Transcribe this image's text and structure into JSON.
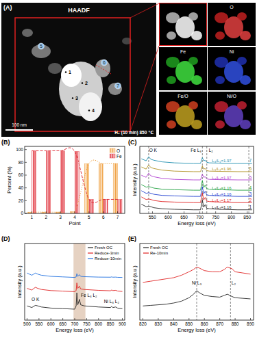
{
  "image_panel": {
    "panel": "(A)",
    "title": "HAADF",
    "scale_bar": "100 nm",
    "condition": "H₂ (10 min)  850 ℃",
    "points": [
      "1",
      "2",
      "3",
      "4",
      "5",
      "6",
      "7"
    ],
    "maps": [
      "O",
      "Fe",
      "Ni",
      "Fe/O",
      "Ni/O"
    ]
  },
  "chart_data": [
    {
      "panel": "(B)",
      "type": "bar",
      "x_label": "Point",
      "y_label": "Percent (%)",
      "categories": [
        "1",
        "2",
        "3",
        "4",
        "5",
        "6",
        "7"
      ],
      "ylim": [
        0,
        105
      ],
      "yticks": [
        0,
        20,
        40,
        60,
        80,
        100
      ],
      "legend": "upper right",
      "series": [
        {
          "name": "O",
          "color": "#f0a040",
          "line_style": "dotted",
          "values": [
            2,
            2,
            2,
            3,
            78,
            78,
            78
          ]
        },
        {
          "name": "Fe",
          "color": "#e0303a",
          "line_style": "dashed",
          "values": [
            98,
            98,
            98,
            97,
            22,
            22,
            22
          ]
        }
      ]
    },
    {
      "panel": "(C)",
      "type": "line",
      "x_label": "Energy loss (eV)",
      "y_label": "Intensity (a.u.)",
      "tick_labels": "x",
      "xlim": [
        510,
        870
      ],
      "xticks": [
        550,
        600,
        650,
        700,
        750,
        800,
        850
      ],
      "ylim": [
        0,
        6.5
      ],
      "vlines": [
        538,
        708,
        722,
        855
      ],
      "annotations": [
        {
          "text": "O K",
          "x": 552,
          "y": 5.95
        },
        {
          "text": "Fe L₃",
          "x": 688,
          "y": 5.95
        },
        {
          "text": "L₂",
          "x": 735,
          "y": 5.95
        }
      ],
      "x": [
        515,
        530,
        538,
        545,
        555,
        580,
        620,
        680,
        702,
        708,
        712,
        717,
        722,
        730,
        760,
        820,
        865
      ],
      "series": [
        {
          "name": "1",
          "color": "#222222",
          "annotation": "L₃/L₂=1.16",
          "values": [
            0.9,
            0.65,
            0.7,
            0.65,
            0.55,
            0.45,
            0.4,
            0.35,
            0.35,
            1.3,
            0.6,
            0.85,
            0.5,
            0.45,
            0.4,
            0.35,
            0.35
          ]
        },
        {
          "name": "2",
          "color": "#e02020",
          "annotation": "L₃/L₂=1.17",
          "values": [
            1.6,
            1.35,
            1.4,
            1.35,
            1.25,
            1.15,
            1.1,
            1.05,
            1.05,
            2.0,
            1.3,
            1.55,
            1.2,
            1.15,
            1.1,
            1.05,
            1.05
          ]
        },
        {
          "name": "3",
          "color": "#2040d0",
          "annotation": "L₃/L₂=1.16",
          "values": [
            2.2,
            1.95,
            2.0,
            1.95,
            1.85,
            1.75,
            1.7,
            1.65,
            1.65,
            2.6,
            1.9,
            2.15,
            1.8,
            1.75,
            1.7,
            1.65,
            1.65
          ]
        },
        {
          "name": "4",
          "color": "#20a040",
          "annotation": "L₃/L₂=1.16",
          "values": [
            2.8,
            2.55,
            2.6,
            2.55,
            2.45,
            2.35,
            2.3,
            2.25,
            2.25,
            3.2,
            2.5,
            2.75,
            2.4,
            2.35,
            2.3,
            2.25,
            2.25
          ]
        },
        {
          "name": "5",
          "color": "#b040d0",
          "annotation": "L₃/L₂=1.97",
          "values": [
            3.7,
            3.5,
            3.9,
            3.65,
            3.55,
            3.4,
            3.3,
            3.25,
            3.25,
            3.8,
            3.5,
            3.55,
            3.35,
            3.3,
            3.28,
            3.25,
            3.25
          ]
        },
        {
          "name": "6",
          "color": "#b09020",
          "annotation": "L₃/L₂=1.96",
          "values": [
            4.5,
            4.3,
            4.7,
            4.45,
            4.35,
            4.2,
            4.1,
            4.05,
            4.05,
            4.6,
            4.3,
            4.35,
            4.15,
            4.1,
            4.08,
            4.05,
            4.05
          ]
        },
        {
          "name": "7",
          "color": "#2090b0",
          "annotation": "L₃/L₂=1.97",
          "values": [
            5.3,
            5.1,
            5.5,
            5.25,
            5.15,
            5.0,
            4.9,
            4.85,
            4.85,
            5.4,
            5.1,
            5.15,
            4.95,
            4.9,
            4.88,
            4.85,
            4.85
          ]
        }
      ]
    },
    {
      "panel": "(D)",
      "type": "line",
      "x_label": "Energy loss (eV)",
      "y_label": "Intensity (a.u.)",
      "tick_labels": "x",
      "xlim": [
        490,
        910
      ],
      "xticks": [
        500,
        550,
        600,
        650,
        700,
        750,
        800,
        850,
        900
      ],
      "ylim": [
        0,
        7
      ],
      "legend": "upper right",
      "highlight": [
        695,
        745
      ],
      "annotations": [
        {
          "text": "O K",
          "x": 535,
          "y": 1.75
        },
        {
          "text": "Fe L₃ L₂",
          "x": 760,
          "y": 2.1
        },
        {
          "text": "Ni L₃ L₂",
          "x": 855,
          "y": 1.55
        }
      ],
      "x": [
        500,
        520,
        535,
        545,
        560,
        600,
        650,
        700,
        706,
        709,
        713,
        720,
        725,
        740,
        800,
        850,
        855,
        860,
        872,
        880,
        900
      ],
      "series": [
        {
          "name": "Fresh OC",
          "color": "#222222",
          "values": [
            1.3,
            1.15,
            1.35,
            1.3,
            1.2,
            1.1,
            1.05,
            1.0,
            1.3,
            2.5,
            1.4,
            1.9,
            1.4,
            1.3,
            1.2,
            1.15,
            1.25,
            1.15,
            1.2,
            1.1,
            1.05
          ]
        },
        {
          "name": "Reduce-3min",
          "color": "#e02020",
          "values": [
            2.9,
            2.75,
            3.0,
            2.9,
            2.8,
            2.7,
            2.65,
            2.6,
            2.7,
            3.4,
            2.9,
            3.1,
            2.85,
            2.8,
            2.72,
            2.68,
            2.75,
            2.7,
            2.72,
            2.66,
            2.62
          ]
        },
        {
          "name": "Reduce-10min",
          "color": "#2070e0",
          "values": [
            4.3,
            4.1,
            4.3,
            4.2,
            4.1,
            4.0,
            3.95,
            3.9,
            3.95,
            4.25,
            4.0,
            4.15,
            4.0,
            3.97,
            3.93,
            3.92,
            3.95,
            3.92,
            3.93,
            3.91,
            3.9
          ]
        }
      ]
    },
    {
      "panel": "(E)",
      "type": "line",
      "x_label": "Energy loss (eV)",
      "y_label": "Intensity (a.u.)",
      "tick_labels": "x",
      "xlim": [
        818,
        892
      ],
      "xticks": [
        820,
        830,
        840,
        850,
        860,
        870,
        880,
        890
      ],
      "ylim": [
        0,
        6.5
      ],
      "legend": "upper left",
      "vlines": [
        855,
        877
      ],
      "annotations": [
        {
          "text": "Ni L₃",
          "x": 855,
          "y": 3.0
        },
        {
          "text": "L₂",
          "x": 879,
          "y": 3.0
        }
      ],
      "x": [
        820,
        825,
        830,
        835,
        840,
        845,
        850,
        853,
        855,
        857,
        860,
        865,
        870,
        873,
        875,
        878,
        880,
        885,
        890
      ],
      "series": [
        {
          "name": "Fresh OC",
          "color": "#222222",
          "values": [
            1.2,
            1.25,
            1.3,
            1.35,
            1.45,
            1.6,
            1.9,
            2.2,
            2.5,
            2.3,
            2.1,
            2.0,
            1.95,
            2.1,
            2.2,
            2.0,
            1.9,
            1.85,
            1.8
          ]
        },
        {
          "name": "Re-10min",
          "color": "#e02020",
          "values": [
            3.2,
            3.3,
            3.4,
            3.5,
            3.6,
            3.8,
            4.1,
            4.3,
            4.5,
            4.4,
            4.2,
            4.1,
            4.1,
            4.3,
            4.5,
            4.35,
            4.1,
            4.0,
            3.9
          ]
        }
      ]
    }
  ]
}
